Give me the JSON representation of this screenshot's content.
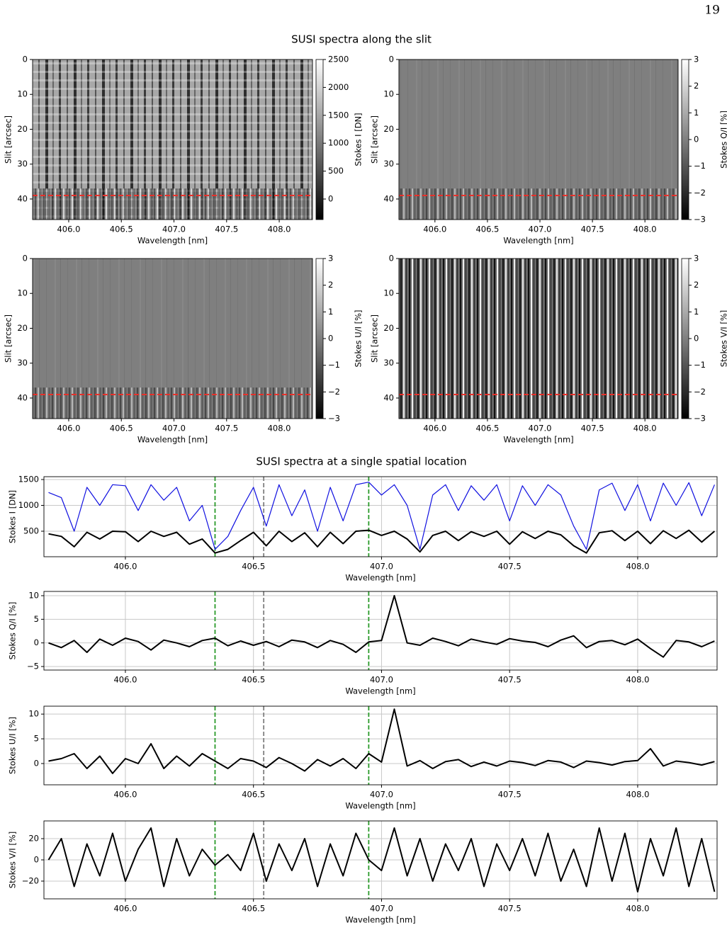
{
  "page_number": "19",
  "section_titles": [
    "SUSI spectra along the slit",
    "SUSI spectra at a single spatial location"
  ],
  "chart_data": [
    {
      "type": "heatmap",
      "cmap": "gray",
      "xlabel": "Wavelength [nm]",
      "ylabel": "Slit [arcsec]",
      "clabel": "Stokes I [DN]",
      "xlim": [
        405.657,
        408.316
      ],
      "ylim": [
        0,
        45.9
      ],
      "y_inverted": true,
      "xticks": [
        {
          "value": 406,
          "label": "406.0"
        },
        {
          "value": 406.5,
          "label": "406.5"
        },
        {
          "value": 407,
          "label": "407.0"
        },
        {
          "value": 407.5,
          "label": "407.5"
        },
        {
          "value": 408,
          "label": "408.0"
        }
      ],
      "yticks": [
        0,
        10,
        20,
        30,
        40
      ],
      "clim": [
        -368,
        2500
      ],
      "cticks": [
        0,
        500,
        1000,
        1500,
        2000,
        2500
      ],
      "hline": 39,
      "hline_color": "#e8302a"
    },
    {
      "type": "heatmap",
      "cmap": "gray",
      "xlabel": "Wavelength [nm]",
      "ylabel": "Slit [arcsec]",
      "clabel": "Stokes Q/I [%]",
      "xlim": [
        405.657,
        408.316
      ],
      "ylim": [
        0,
        45.9
      ],
      "y_inverted": true,
      "xticks": [
        {
          "value": 406,
          "label": "406.0"
        },
        {
          "value": 406.5,
          "label": "406.5"
        },
        {
          "value": 407,
          "label": "407.0"
        },
        {
          "value": 407.5,
          "label": "407.5"
        },
        {
          "value": 408,
          "label": "408.0"
        }
      ],
      "yticks": [
        0,
        10,
        20,
        30,
        40
      ],
      "clim": [
        -3,
        3
      ],
      "cticks": [
        {
          "value": -3,
          "label": "−3"
        },
        {
          "value": -2,
          "label": "−2"
        },
        {
          "value": -1,
          "label": "−1"
        },
        0,
        1,
        2,
        3
      ],
      "hline": 39,
      "hline_color": "#e8302a"
    },
    {
      "type": "heatmap",
      "cmap": "gray",
      "xlabel": "Wavelength [nm]",
      "ylabel": "Slit [arcsec]",
      "clabel": "Stokes U/I [%]",
      "xlim": [
        405.657,
        408.316
      ],
      "ylim": [
        0,
        45.9
      ],
      "y_inverted": true,
      "xticks": [
        {
          "value": 406,
          "label": "406.0"
        },
        {
          "value": 406.5,
          "label": "406.5"
        },
        {
          "value": 407,
          "label": "407.0"
        },
        {
          "value": 407.5,
          "label": "407.5"
        },
        {
          "value": 408,
          "label": "408.0"
        }
      ],
      "yticks": [
        0,
        10,
        20,
        30,
        40
      ],
      "clim": [
        -3,
        3
      ],
      "cticks": [
        {
          "value": -3,
          "label": "−3"
        },
        {
          "value": -2,
          "label": "−2"
        },
        {
          "value": -1,
          "label": "−1"
        },
        0,
        1,
        2,
        3
      ],
      "hline": 39,
      "hline_color": "#e8302a"
    },
    {
      "type": "heatmap",
      "cmap": "gray",
      "xlabel": "Wavelength [nm]",
      "ylabel": "Slit [arcsec]",
      "clabel": "Stokes V/I [%]",
      "xlim": [
        405.657,
        408.316
      ],
      "ylim": [
        0,
        45.9
      ],
      "y_inverted": true,
      "xticks": [
        {
          "value": 406,
          "label": "406.0"
        },
        {
          "value": 406.5,
          "label": "406.5"
        },
        {
          "value": 407,
          "label": "407.0"
        },
        {
          "value": 407.5,
          "label": "407.5"
        },
        {
          "value": 408,
          "label": "408.0"
        }
      ],
      "yticks": [
        0,
        10,
        20,
        30,
        40
      ],
      "clim": [
        -3,
        3
      ],
      "cticks": [
        {
          "value": -3,
          "label": "−3"
        },
        {
          "value": -2,
          "label": "−2"
        },
        {
          "value": -1,
          "label": "−1"
        },
        0,
        1,
        2,
        3
      ],
      "hline": 39,
      "hline_color": "#e8302a"
    },
    {
      "type": "line",
      "xlabel": "Wavelength [nm]",
      "ylabel": "Stokes I [DN]",
      "grid": true,
      "xlim": [
        405.682,
        408.31
      ],
      "ylim": [
        7,
        1555
      ],
      "xticks": [
        {
          "value": 406,
          "label": "406.0"
        },
        {
          "value": 406.5,
          "label": "406.5"
        },
        {
          "value": 407,
          "label": "407.0"
        },
        {
          "value": 407.5,
          "label": "407.5"
        },
        {
          "value": 408,
          "label": "408.0"
        }
      ],
      "yticks": [
        500,
        1000,
        1500
      ],
      "vlines": [
        {
          "x": 406.35,
          "color": "#2a9a2a"
        },
        {
          "x": 406.54,
          "color": "#808080"
        },
        {
          "x": 406.95,
          "color": "#2a9a2a"
        }
      ],
      "x": [
        405.7,
        405.75,
        405.8,
        405.85,
        405.9,
        405.95,
        406,
        406.05,
        406.1,
        406.15,
        406.2,
        406.25,
        406.3,
        406.35,
        406.4,
        406.45,
        406.5,
        406.55,
        406.6,
        406.65,
        406.7,
        406.75,
        406.8,
        406.85,
        406.9,
        406.95,
        407,
        407.05,
        407.1,
        407.15,
        407.2,
        407.25,
        407.3,
        407.35,
        407.4,
        407.45,
        407.5,
        407.55,
        407.6,
        407.65,
        407.7,
        407.75,
        407.8,
        407.85,
        407.9,
        407.95,
        408,
        408.05,
        408.1,
        408.15,
        408.2,
        408.25,
        408.3
      ],
      "series": [
        {
          "color": "#1010e0",
          "width": 1.2,
          "values": [
            1250,
            1150,
            500,
            1350,
            1000,
            1400,
            1380,
            900,
            1400,
            1100,
            1350,
            700,
            1000,
            150,
            400,
            900,
            1350,
            600,
            1400,
            800,
            1300,
            500,
            1350,
            700,
            1400,
            1450,
            1200,
            1400,
            1000,
            150,
            1200,
            1400,
            900,
            1380,
            1100,
            1400,
            700,
            1380,
            1000,
            1400,
            1200,
            600,
            150,
            1300,
            1430,
            900,
            1400,
            700,
            1430,
            1000,
            1440,
            800,
            1400
          ]
        },
        {
          "color": "#000000",
          "width": 2,
          "values": [
            450,
            400,
            200,
            480,
            350,
            500,
            490,
            300,
            500,
            400,
            480,
            250,
            350,
            80,
            150,
            320,
            480,
            220,
            500,
            300,
            470,
            200,
            480,
            260,
            500,
            520,
            420,
            500,
            350,
            100,
            420,
            500,
            320,
            490,
            400,
            500,
            250,
            490,
            360,
            500,
            430,
            220,
            80,
            470,
            510,
            320,
            500,
            260,
            510,
            360,
            520,
            290,
            500
          ]
        }
      ]
    },
    {
      "type": "line",
      "xlabel": "Wavelength [nm]",
      "ylabel": "Stokes Q/I [%]",
      "grid": true,
      "xlim": [
        405.682,
        408.31
      ],
      "ylim": [
        -5.75,
        10.9
      ],
      "xticks": [
        {
          "value": 406,
          "label": "406.0"
        },
        {
          "value": 406.5,
          "label": "406.5"
        },
        {
          "value": 407,
          "label": "407.0"
        },
        {
          "value": 407.5,
          "label": "407.5"
        },
        {
          "value": 408,
          "label": "408.0"
        }
      ],
      "yticks": [
        {
          "value": -5,
          "label": "−5"
        },
        0,
        5,
        10
      ],
      "vlines": [
        {
          "x": 406.35,
          "color": "#2a9a2a"
        },
        {
          "x": 406.54,
          "color": "#808080"
        },
        {
          "x": 406.95,
          "color": "#2a9a2a"
        }
      ],
      "x": [
        405.7,
        405.75,
        405.8,
        405.85,
        405.9,
        405.95,
        406,
        406.05,
        406.1,
        406.15,
        406.2,
        406.25,
        406.3,
        406.35,
        406.4,
        406.45,
        406.5,
        406.55,
        406.6,
        406.65,
        406.7,
        406.75,
        406.8,
        406.85,
        406.9,
        406.95,
        407,
        407.05,
        407.1,
        407.15,
        407.2,
        407.25,
        407.3,
        407.35,
        407.4,
        407.45,
        407.5,
        407.55,
        407.6,
        407.65,
        407.7,
        407.75,
        407.8,
        407.85,
        407.9,
        407.95,
        408,
        408.05,
        408.1,
        408.15,
        408.2,
        408.25,
        408.3
      ],
      "series": [
        {
          "color": "#000000",
          "width": 2,
          "values": [
            0,
            -1,
            0.5,
            -2,
            0.8,
            -0.5,
            1,
            0.3,
            -1.5,
            0.6,
            0,
            -0.8,
            0.5,
            1,
            -0.6,
            0.4,
            -0.5,
            0.3,
            -0.8,
            0.6,
            0.2,
            -1,
            0.5,
            -0.3,
            -2,
            0.2,
            0.5,
            10,
            0,
            -0.5,
            1,
            0.3,
            -0.6,
            0.8,
            0.2,
            -0.3,
            0.9,
            0.4,
            0.1,
            -0.8,
            0.6,
            1.5,
            -1,
            0.3,
            0.5,
            -0.4,
            0.8,
            -1.2,
            -3,
            0.5,
            0.2,
            -0.8,
            0.4
          ]
        }
      ]
    },
    {
      "type": "line",
      "xlabel": "Wavelength [nm]",
      "ylabel": "Stokes U/I [%]",
      "grid": true,
      "xlim": [
        405.682,
        408.31
      ],
      "ylim": [
        -4.3,
        11.6
      ],
      "xticks": [
        {
          "value": 406,
          "label": "406.0"
        },
        {
          "value": 406.5,
          "label": "406.5"
        },
        {
          "value": 407,
          "label": "407.0"
        },
        {
          "value": 407.5,
          "label": "407.5"
        },
        {
          "value": 408,
          "label": "408.0"
        }
      ],
      "yticks": [
        0,
        5,
        10
      ],
      "vlines": [
        {
          "x": 406.35,
          "color": "#2a9a2a"
        },
        {
          "x": 406.54,
          "color": "#808080"
        },
        {
          "x": 406.95,
          "color": "#2a9a2a"
        }
      ],
      "x": [
        405.7,
        405.75,
        405.8,
        405.85,
        405.9,
        405.95,
        406,
        406.05,
        406.1,
        406.15,
        406.2,
        406.25,
        406.3,
        406.35,
        406.4,
        406.45,
        406.5,
        406.55,
        406.6,
        406.65,
        406.7,
        406.75,
        406.8,
        406.85,
        406.9,
        406.95,
        407,
        407.05,
        407.1,
        407.15,
        407.2,
        407.25,
        407.3,
        407.35,
        407.4,
        407.45,
        407.5,
        407.55,
        407.6,
        407.65,
        407.7,
        407.75,
        407.8,
        407.85,
        407.9,
        407.95,
        408,
        408.05,
        408.1,
        408.15,
        408.2,
        408.25,
        408.3
      ],
      "series": [
        {
          "color": "#000000",
          "width": 2,
          "values": [
            0.5,
            1,
            2,
            -1,
            1.5,
            -2,
            1,
            0,
            4,
            -1,
            1.5,
            -0.5,
            2,
            0.5,
            -1,
            1,
            0.5,
            -0.8,
            1.2,
            0,
            -1.5,
            0.8,
            -0.5,
            1,
            -1,
            2,
            0.3,
            11,
            -0.5,
            0.6,
            -1,
            0.4,
            0.8,
            -0.6,
            0.3,
            -0.5,
            0.5,
            0.2,
            -0.4,
            0.6,
            0.3,
            -0.8,
            0.5,
            0.2,
            -0.3,
            0.4,
            0.6,
            3,
            -0.5,
            0.5,
            0.2,
            -0.3,
            0.4
          ]
        }
      ]
    },
    {
      "type": "line",
      "xlabel": "Wavelength [nm]",
      "ylabel": "Stokes V/I [%]",
      "grid": true,
      "xlim": [
        405.682,
        408.31
      ],
      "ylim": [
        -36.7,
        36.7
      ],
      "xticks": [
        {
          "value": 406,
          "label": "406.0"
        },
        {
          "value": 406.5,
          "label": "406.5"
        },
        {
          "value": 407,
          "label": "407.0"
        },
        {
          "value": 407.5,
          "label": "407.5"
        },
        {
          "value": 408,
          "label": "408.0"
        }
      ],
      "yticks": [
        {
          "value": -20,
          "label": "−20"
        },
        0,
        20
      ],
      "vlines": [
        {
          "x": 406.35,
          "color": "#2a9a2a"
        },
        {
          "x": 406.54,
          "color": "#808080"
        },
        {
          "x": 406.95,
          "color": "#2a9a2a"
        }
      ],
      "x": [
        405.7,
        405.75,
        405.8,
        405.85,
        405.9,
        405.95,
        406,
        406.05,
        406.1,
        406.15,
        406.2,
        406.25,
        406.3,
        406.35,
        406.4,
        406.45,
        406.5,
        406.55,
        406.6,
        406.65,
        406.7,
        406.75,
        406.8,
        406.85,
        406.9,
        406.95,
        407,
        407.05,
        407.1,
        407.15,
        407.2,
        407.25,
        407.3,
        407.35,
        407.4,
        407.45,
        407.5,
        407.55,
        407.6,
        407.65,
        407.7,
        407.75,
        407.8,
        407.85,
        407.9,
        407.95,
        408,
        408.05,
        408.1,
        408.15,
        408.2,
        408.25,
        408.3
      ],
      "series": [
        {
          "color": "#000000",
          "width": 2,
          "values": [
            0,
            20,
            -25,
            15,
            -15,
            25,
            -20,
            10,
            30,
            -25,
            20,
            -15,
            10,
            -5,
            5,
            -10,
            25,
            -20,
            15,
            -10,
            20,
            -25,
            15,
            -15,
            25,
            0,
            -10,
            30,
            -15,
            20,
            -20,
            15,
            -10,
            20,
            -25,
            15,
            -10,
            20,
            -15,
            25,
            -20,
            10,
            -25,
            30,
            -20,
            25,
            -30,
            20,
            -15,
            30,
            -25,
            20,
            -30
          ]
        }
      ]
    }
  ]
}
